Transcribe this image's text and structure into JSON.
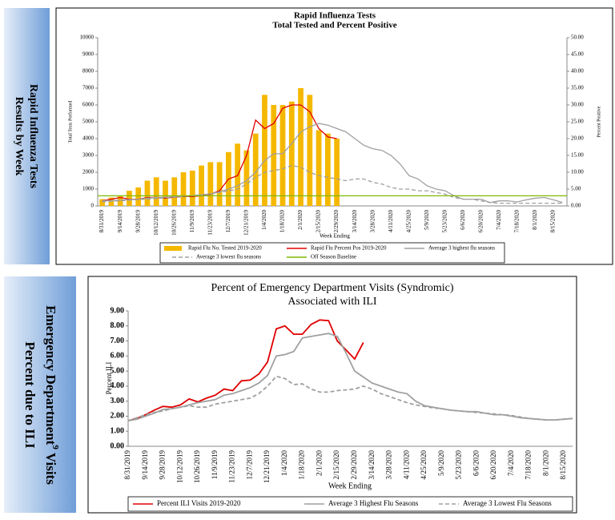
{
  "side_labels": [
    {
      "line1": "Rapid Influenza Tests",
      "line2": "Results by Week"
    },
    {
      "line1": "Emergency Department",
      "sup": "9",
      "line1_end": "Visits",
      "line2": "Percent due to ILI"
    }
  ],
  "chart_data": [
    {
      "type": "combo",
      "title": "Rapid Influenza Tests",
      "subtitle": "Total Tested and Percent Positive",
      "x_label": "Week Ending",
      "y_label": "Total Tests Performed",
      "y2_label": "Percent Positive",
      "categories": [
        "8/31/2019",
        null,
        "9/14/2019",
        null,
        "9/28/2019",
        null,
        "10/12/2019",
        null,
        "10/26/2019",
        null,
        "11/9/2019",
        null,
        "11/23/2019",
        null,
        "12/7/2019",
        null,
        "12/21/2019",
        null,
        "1/4/2020",
        null,
        "1/18/2020",
        null,
        "2/1/2020",
        null,
        "2/15/2020",
        null,
        "2/29/2020",
        null,
        "3/14/2020",
        null,
        "3/28/2020",
        null,
        "4/11/2020",
        null,
        "4/25/2020",
        null,
        "5/9/2020",
        null,
        "5/23/2020",
        null,
        "6/6/2020",
        null,
        "6/20/2020",
        null,
        "7/4/2020",
        null,
        "7/18/2020",
        null,
        "8/1/2020",
        null,
        "8/15/2020",
        null
      ],
      "ylim": [
        0,
        10000
      ],
      "yticks": [
        0,
        1000,
        2000,
        3000,
        4000,
        5000,
        6000,
        7000,
        8000,
        9000,
        10000
      ],
      "y2lim": [
        0,
        50
      ],
      "y2ticks": [
        {
          "value": 0,
          "label": "0.00"
        },
        {
          "value": 5,
          "label": "5.00"
        },
        {
          "value": 10,
          "label": "10.00"
        },
        {
          "value": 15,
          "label": "15.00"
        },
        {
          "value": 20,
          "label": "20.00"
        },
        {
          "value": 25,
          "label": "25.00"
        },
        {
          "value": 30,
          "label": "30.00"
        },
        {
          "value": 35,
          "label": "35.00"
        },
        {
          "value": 40,
          "label": "40.00"
        },
        {
          "value": 45,
          "label": "45.00"
        },
        {
          "value": 50,
          "label": "50.00"
        }
      ],
      "series": [
        {
          "name": "Rapid Flu No. Tested 2019-2020",
          "type": "bar",
          "color": "#f5b800",
          "values": [
            400,
            500,
            600,
            900,
            1100,
            1500,
            1700,
            1500,
            1700,
            2000,
            2100,
            2400,
            2600,
            2600,
            3200,
            3700,
            3300,
            4300,
            6600,
            6000,
            6000,
            6200,
            7000,
            6600,
            4500,
            4300,
            4000,
            null,
            null,
            null,
            null,
            null,
            null,
            null,
            null,
            null,
            null,
            null,
            null,
            null,
            null,
            null,
            null,
            null,
            null,
            null,
            null,
            null,
            null,
            null,
            null,
            null
          ]
        },
        {
          "name": "Rapid Flu Percent Pos 2019-2020",
          "type": "line",
          "axis": "y2",
          "color": "#e00000",
          "values": [
            1.5,
            2,
            2.5,
            2,
            2,
            2.5,
            2.5,
            2.3,
            2.6,
            2.8,
            2.8,
            3,
            3.5,
            4.5,
            8,
            9,
            15,
            25.5,
            23,
            24.5,
            29,
            30,
            30,
            28,
            23,
            20.5,
            20,
            null,
            null,
            null,
            null,
            null,
            null,
            null,
            null,
            null,
            null,
            null,
            null,
            null,
            null,
            null,
            null,
            null,
            null,
            null,
            null,
            null,
            null,
            null,
            null,
            null
          ]
        },
        {
          "name": "Average 3 highest flu seasons",
          "type": "line",
          "axis": "y2",
          "color": "#a0a0a0",
          "values": [
            1.5,
            1.6,
            1.7,
            1.9,
            2.0,
            2.3,
            2.5,
            2.6,
            2.7,
            2.9,
            3.1,
            3.3,
            3.6,
            4.2,
            5.0,
            6.0,
            7.5,
            10,
            13.5,
            15.5,
            15.5,
            18.5,
            22,
            23.5,
            24.5,
            24,
            23,
            22,
            20,
            18,
            17,
            16.5,
            15,
            12.5,
            9,
            8,
            6,
            5,
            4.5,
            3,
            2,
            2,
            2,
            1,
            1.5,
            1.5,
            1.2,
            1.8,
            2.3,
            2.5,
            1.8,
            1
          ]
        },
        {
          "name": "Average 3 lowest flu seasons",
          "type": "line",
          "axis": "y2",
          "dashed": true,
          "color": "#a0a0a0",
          "values": [
            1.2,
            1.4,
            1.5,
            1.7,
            1.9,
            2.0,
            2.2,
            2.4,
            2.6,
            2.8,
            3.0,
            3.2,
            3.5,
            4.0,
            4.5,
            5.0,
            6.5,
            8.5,
            10,
            10.5,
            11,
            12,
            11.5,
            10,
            9,
            8.5,
            8,
            7.5,
            8,
            8,
            7,
            6.5,
            5.5,
            5,
            5,
            4.5,
            4.5,
            4,
            3.5,
            2.5,
            2,
            2,
            1.5,
            1,
            0.8,
            0.8,
            0.8,
            0.8,
            0.8,
            0.8,
            0.8,
            0.8
          ]
        },
        {
          "name": "Off Season Baseline",
          "type": "constant",
          "axis": "y2",
          "color": "#7fba00",
          "constant": 3
        }
      ]
    },
    {
      "type": "line",
      "title": "Percent of Emergency Department Visits (Syndromic)",
      "subtitle": "Associated with ILI",
      "x_label": "Week Ending",
      "y_label": "Percent ILI",
      "categories": [
        "8/31/2019",
        null,
        "9/14/2019",
        null,
        "9/28/2019",
        null,
        "10/12/2019",
        null,
        "10/26/2019",
        null,
        "11/9/2019",
        null,
        "11/23/2019",
        null,
        "12/7/2019",
        null,
        "12/21/2019",
        null,
        "1/4/2020",
        null,
        "1/18/2020",
        null,
        "2/1/2020",
        null,
        "2/15/2020",
        null,
        "2/29/2020",
        null,
        "3/14/2020",
        null,
        "3/28/2020",
        null,
        "4/11/2020",
        null,
        "4/25/2020",
        null,
        "5/9/2020",
        null,
        "5/23/2020",
        null,
        "6/6/2020",
        null,
        "6/20/2020",
        null,
        "7/4/2020",
        null,
        "7/18/2020",
        null,
        "8/1/2020",
        null,
        "8/15/2020",
        null
      ],
      "ylim": [
        0,
        9
      ],
      "yticks": [
        {
          "value": 0,
          "label": "0.00"
        },
        {
          "value": 1,
          "label": "1.00"
        },
        {
          "value": 2,
          "label": "2.00"
        },
        {
          "value": 3,
          "label": "3.00"
        },
        {
          "value": 4,
          "label": "4.00"
        },
        {
          "value": 5,
          "label": "5.00"
        },
        {
          "value": 6,
          "label": "6.00"
        },
        {
          "value": 7,
          "label": "7.00"
        },
        {
          "value": 8,
          "label": "8.00"
        },
        {
          "value": 9,
          "label": "9.00"
        }
      ],
      "series": [
        {
          "name": "Percent ILI Visits 2019-2020",
          "type": "line",
          "color": "#e00000",
          "values": [
            1.7,
            1.85,
            2.1,
            2.4,
            2.65,
            2.6,
            2.75,
            3.15,
            2.95,
            3.2,
            3.4,
            3.8,
            3.7,
            4.35,
            4.4,
            4.8,
            5.6,
            7.8,
            8.0,
            7.45,
            7.45,
            8.1,
            8.4,
            8.35,
            7.0,
            6.4,
            5.8,
            6.9,
            null,
            null,
            null,
            null,
            null,
            null,
            null,
            null,
            null,
            null,
            null,
            null,
            null,
            null,
            null,
            null,
            null,
            null,
            null,
            null,
            null,
            null,
            null,
            null
          ]
        },
        {
          "name": "Average 3 Highest Flu Seasons",
          "type": "line",
          "color": "#a0a0a0",
          "values": [
            1.7,
            1.8,
            2.0,
            2.2,
            2.45,
            2.5,
            2.6,
            2.75,
            2.9,
            3.0,
            3.1,
            3.4,
            3.5,
            3.7,
            3.9,
            4.2,
            4.7,
            6.0,
            6.1,
            6.3,
            7.2,
            7.3,
            7.4,
            7.5,
            7.3,
            6.2,
            5.0,
            4.6,
            4.2,
            4.0,
            3.8,
            3.6,
            3.5,
            3.0,
            2.7,
            2.6,
            2.5,
            2.4,
            2.35,
            2.3,
            2.3,
            2.2,
            2.1,
            2.1,
            2.0,
            1.9,
            1.85,
            1.8,
            1.75,
            1.75,
            1.8,
            1.85
          ]
        },
        {
          "name": "Average 3 Lowest Flu Seasons",
          "type": "line",
          "dashed": true,
          "color": "#a0a0a0",
          "values": [
            1.7,
            1.9,
            2.1,
            2.25,
            2.35,
            2.5,
            2.6,
            2.7,
            2.6,
            2.6,
            2.8,
            2.9,
            3.0,
            3.1,
            3.2,
            3.5,
            4.0,
            4.65,
            4.5,
            4.1,
            4.15,
            3.8,
            3.6,
            3.6,
            3.7,
            3.75,
            3.8,
            4.0,
            3.8,
            3.5,
            3.3,
            3.1,
            2.9,
            2.75,
            2.65,
            2.55,
            2.5,
            2.4,
            2.35,
            2.3,
            2.25,
            2.2,
            2.15,
            2.1,
            2.05,
            1.95,
            1.85,
            1.8,
            1.75,
            1.75,
            1.8,
            1.85
          ]
        }
      ]
    }
  ]
}
